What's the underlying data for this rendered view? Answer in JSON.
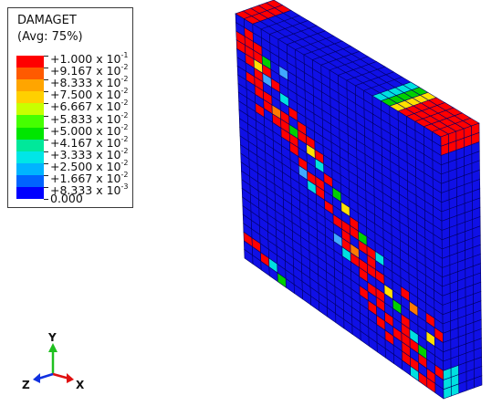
{
  "legend": {
    "title": "DAMAGET",
    "subtitle": "(Avg: 75%)",
    "labels": [
      {
        "sign": "+",
        "mant": "1.000",
        "exp": "-1"
      },
      {
        "sign": "+",
        "mant": "9.167",
        "exp": "-2"
      },
      {
        "sign": "+",
        "mant": "8.333",
        "exp": "-2"
      },
      {
        "sign": "+",
        "mant": "7.500",
        "exp": "-2"
      },
      {
        "sign": "+",
        "mant": "6.667",
        "exp": "-2"
      },
      {
        "sign": "+",
        "mant": "5.833",
        "exp": "-2"
      },
      {
        "sign": "+",
        "mant": "5.000",
        "exp": "-2"
      },
      {
        "sign": "+",
        "mant": "4.167",
        "exp": "-2"
      },
      {
        "sign": "+",
        "mant": "3.333",
        "exp": "-2"
      },
      {
        "sign": "+",
        "mant": "2.500",
        "exp": "-2"
      },
      {
        "sign": "+",
        "mant": "1.667",
        "exp": "-2"
      },
      {
        "sign": "+",
        "mant": "8.333",
        "exp": "-3"
      },
      {
        "sign": "",
        "mant": "0.000",
        "exp": ""
      }
    ],
    "base_text": " x 10",
    "colors": [
      "#ff0000",
      "#ff5a00",
      "#ffa500",
      "#ffd000",
      "#c8ff00",
      "#46ff00",
      "#00e600",
      "#00e89a",
      "#00e6e6",
      "#00b4ff",
      "#0064ff",
      "#0000ff"
    ]
  },
  "triad": {
    "y_label": "Y",
    "x_label": "X",
    "z_label": "Z",
    "x_color": "#e01010",
    "y_color": "#20c020",
    "z_color": "#1030e0"
  },
  "model": {
    "base_color": "#1010e6",
    "mesh_color": "#000066",
    "damage_colors": {
      "high": "#ff0000",
      "orange": "#ff7a00",
      "yellow": "#ffe000",
      "green": "#00d000",
      "cyan": "#00e0e0",
      "lightblue": "#40a8ff"
    }
  }
}
